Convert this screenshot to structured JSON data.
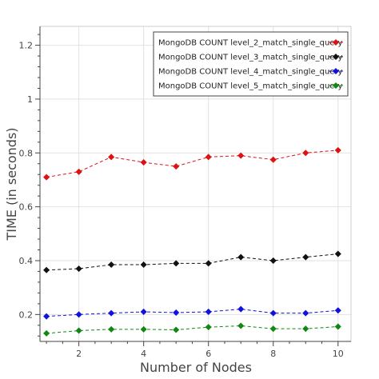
{
  "chart_data": {
    "type": "line",
    "title": "",
    "xlabel": "Number of Nodes",
    "ylabel": "TIME (in seconds)",
    "xlim": [
      0.8,
      10.4
    ],
    "ylim": [
      0.1,
      1.27
    ],
    "x_ticks": [
      "2",
      "4",
      "6",
      "8",
      "10"
    ],
    "y_ticks": [
      "0.2",
      "0.4",
      "0.6",
      "0.8",
      "1",
      "1.2"
    ],
    "grid": true,
    "legend_position": "top-right",
    "x": [
      1,
      2,
      3,
      4,
      5,
      6,
      7,
      8,
      9,
      10
    ],
    "series": [
      {
        "name": "MongoDB COUNT level_2_match_single_query",
        "color": "#dd1111",
        "values": [
          0.71,
          0.73,
          0.785,
          0.765,
          0.75,
          0.785,
          0.79,
          0.775,
          0.8,
          0.81
        ]
      },
      {
        "name": "MongoDB COUNT level_3_match_single_query",
        "color": "#111111",
        "values": [
          0.365,
          0.37,
          0.385,
          0.385,
          0.39,
          0.39,
          0.413,
          0.4,
          0.413,
          0.425
        ]
      },
      {
        "name": "MongoDB COUNT level_4_match_single_query",
        "color": "#1111dd",
        "values": [
          0.193,
          0.2,
          0.205,
          0.21,
          0.207,
          0.21,
          0.22,
          0.205,
          0.205,
          0.215
        ]
      },
      {
        "name": "MongoDB COUNT level_5_match_single_query",
        "color": "#118811",
        "values": [
          0.13,
          0.14,
          0.145,
          0.145,
          0.143,
          0.153,
          0.158,
          0.147,
          0.147,
          0.155
        ]
      }
    ]
  }
}
